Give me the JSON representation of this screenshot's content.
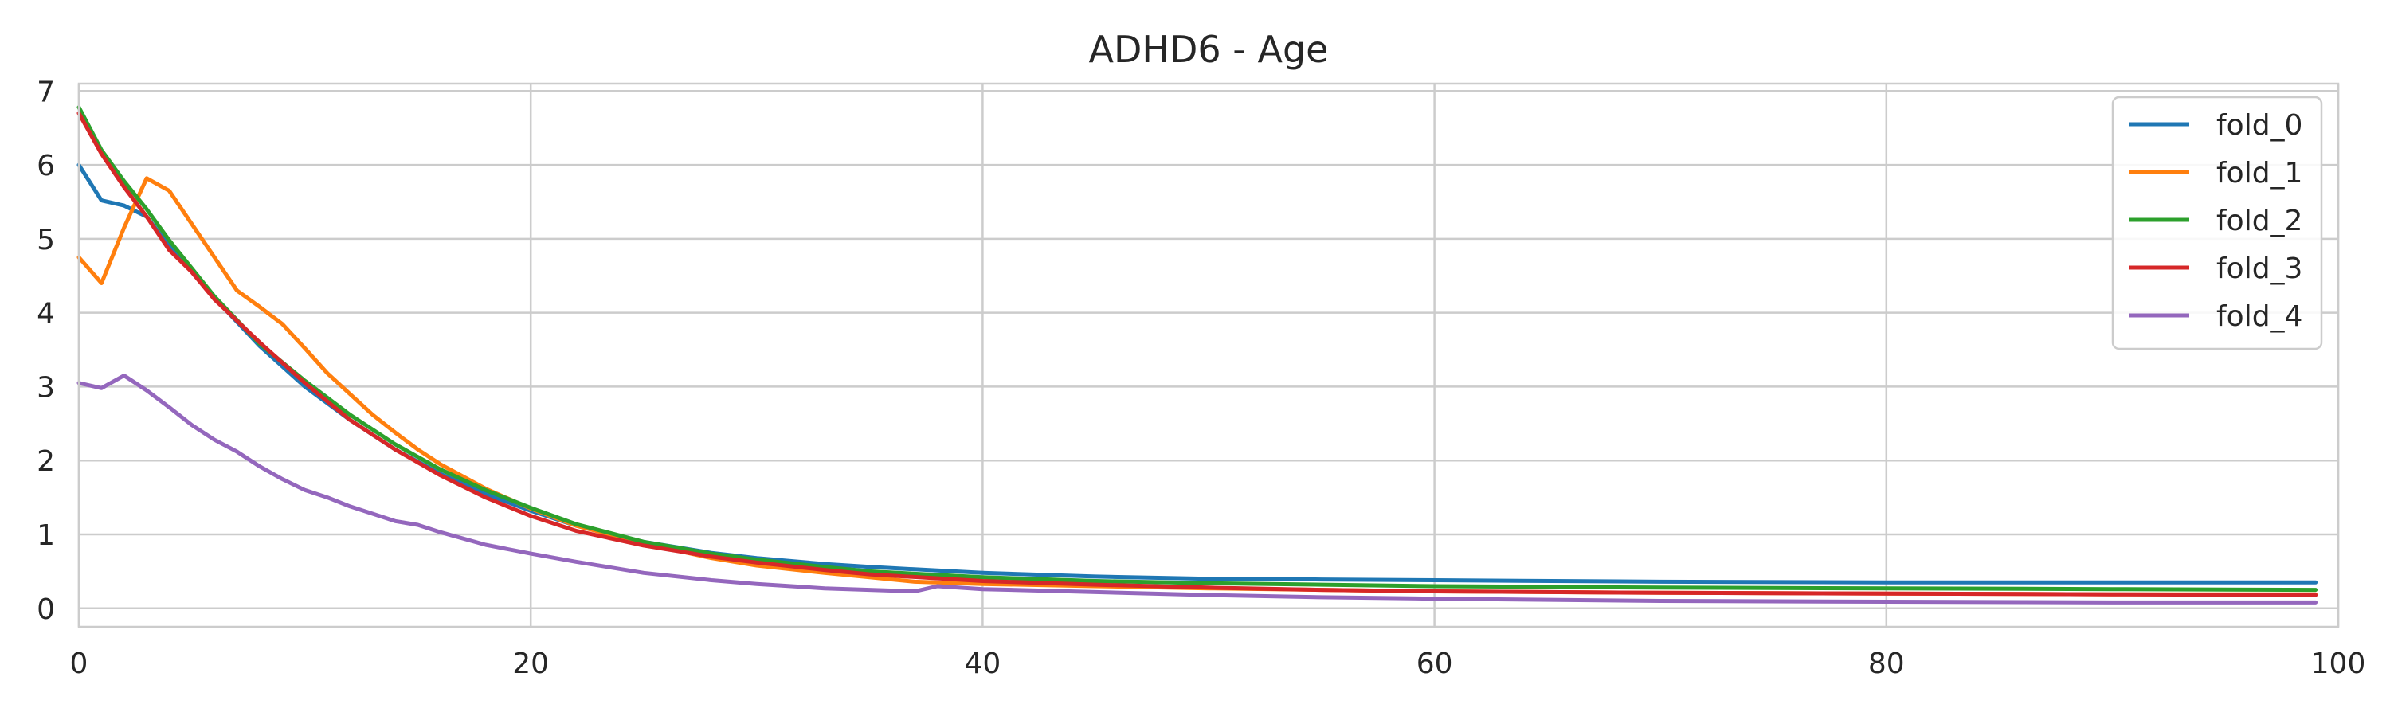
{
  "chart_data": {
    "type": "line",
    "title": "ADHD6 - Age",
    "xlabel": "",
    "ylabel": "",
    "xlim": [
      0,
      100
    ],
    "ylim": [
      -0.25,
      7.1
    ],
    "x_ticks": [
      0,
      20,
      40,
      60,
      80,
      100
    ],
    "y_ticks": [
      0,
      1,
      2,
      3,
      4,
      5,
      6,
      7
    ],
    "grid": true,
    "legend_position": "top-right",
    "series": [
      {
        "name": "fold_0",
        "color": "#1f77b4",
        "x": [
          0,
          1,
          2,
          3,
          4,
          5,
          6,
          8,
          10,
          12,
          14,
          16,
          18,
          20,
          22,
          25,
          28,
          30,
          33,
          35,
          40,
          45,
          50,
          55,
          60,
          70,
          80,
          90,
          99
        ],
        "y": [
          6.0,
          5.52,
          5.45,
          5.3,
          4.9,
          4.55,
          4.2,
          3.55,
          3.0,
          2.55,
          2.15,
          1.82,
          1.55,
          1.32,
          1.12,
          0.9,
          0.75,
          0.68,
          0.6,
          0.56,
          0.48,
          0.43,
          0.4,
          0.39,
          0.38,
          0.36,
          0.35,
          0.35,
          0.35
        ]
      },
      {
        "name": "fold_1",
        "color": "#ff7f0e",
        "x": [
          0,
          1,
          2,
          3,
          4,
          5,
          6,
          7,
          8,
          9,
          10,
          11,
          12,
          13,
          14,
          15,
          16,
          18,
          20,
          22,
          25,
          28,
          30,
          33,
          35,
          37,
          40,
          45,
          50,
          55,
          60,
          70,
          80,
          90,
          99
        ],
        "y": [
          4.75,
          4.4,
          5.15,
          5.82,
          5.65,
          5.2,
          4.75,
          4.3,
          4.08,
          3.85,
          3.52,
          3.18,
          2.9,
          2.62,
          2.38,
          2.15,
          1.95,
          1.62,
          1.35,
          1.12,
          0.88,
          0.68,
          0.58,
          0.48,
          0.42,
          0.36,
          0.33,
          0.3,
          0.27,
          0.25,
          0.23,
          0.21,
          0.2,
          0.19,
          0.19
        ]
      },
      {
        "name": "fold_2",
        "color": "#2ca02c",
        "x": [
          0,
          1,
          2,
          3,
          4,
          5,
          6,
          8,
          10,
          12,
          14,
          16,
          18,
          20,
          22,
          25,
          28,
          30,
          33,
          35,
          40,
          45,
          50,
          55,
          60,
          70,
          80,
          90,
          99
        ],
        "y": [
          6.78,
          6.2,
          5.78,
          5.4,
          4.98,
          4.6,
          4.22,
          3.58,
          3.08,
          2.62,
          2.22,
          1.88,
          1.6,
          1.36,
          1.14,
          0.9,
          0.74,
          0.66,
          0.56,
          0.5,
          0.42,
          0.37,
          0.34,
          0.32,
          0.3,
          0.28,
          0.27,
          0.26,
          0.25
        ]
      },
      {
        "name": "fold_3",
        "color": "#d62728",
        "x": [
          0,
          1,
          2,
          3,
          4,
          5,
          6,
          8,
          10,
          12,
          14,
          16,
          18,
          20,
          22,
          25,
          28,
          30,
          33,
          35,
          40,
          45,
          50,
          55,
          60,
          70,
          80,
          90,
          99
        ],
        "y": [
          6.7,
          6.15,
          5.7,
          5.3,
          4.85,
          4.55,
          4.18,
          3.6,
          3.05,
          2.55,
          2.15,
          1.8,
          1.5,
          1.25,
          1.05,
          0.85,
          0.7,
          0.62,
          0.52,
          0.46,
          0.37,
          0.32,
          0.28,
          0.25,
          0.23,
          0.21,
          0.2,
          0.19,
          0.18
        ]
      },
      {
        "name": "fold_4",
        "color": "#9467bd",
        "x": [
          0,
          1,
          2,
          3,
          4,
          5,
          6,
          7,
          8,
          9,
          10,
          11,
          12,
          13,
          14,
          15,
          16,
          18,
          20,
          22,
          25,
          28,
          30,
          33,
          35,
          37,
          38,
          40,
          45,
          50,
          55,
          60,
          70,
          80,
          90,
          99
        ],
        "y": [
          3.05,
          2.98,
          3.15,
          2.95,
          2.72,
          2.48,
          2.28,
          2.12,
          1.92,
          1.75,
          1.6,
          1.5,
          1.38,
          1.28,
          1.18,
          1.13,
          1.03,
          0.86,
          0.74,
          0.63,
          0.48,
          0.38,
          0.33,
          0.27,
          0.25,
          0.23,
          0.3,
          0.26,
          0.22,
          0.18,
          0.15,
          0.13,
          0.1,
          0.09,
          0.08,
          0.08
        ]
      }
    ]
  }
}
